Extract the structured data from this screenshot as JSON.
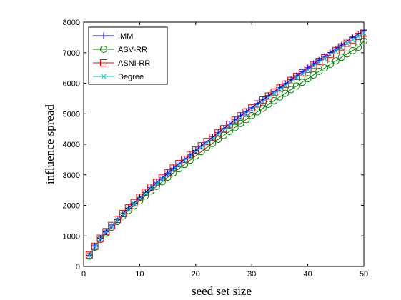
{
  "chart_data": {
    "type": "line",
    "title": "",
    "xlabel": "seed set size",
    "ylabel": "influence spread",
    "xlim": [
      0,
      50
    ],
    "ylim": [
      0,
      8000
    ],
    "xticks": [
      0,
      10,
      20,
      30,
      40,
      50
    ],
    "yticks": [
      0,
      1000,
      2000,
      3000,
      4000,
      5000,
      6000,
      7000,
      8000
    ],
    "grid": false,
    "legend_position": "top-left",
    "x": [
      1,
      2,
      3,
      4,
      5,
      6,
      7,
      8,
      9,
      10,
      11,
      12,
      13,
      14,
      15,
      16,
      17,
      18,
      19,
      20,
      21,
      22,
      23,
      24,
      25,
      26,
      27,
      28,
      29,
      30,
      31,
      32,
      33,
      34,
      35,
      36,
      37,
      38,
      39,
      40,
      41,
      42,
      43,
      44,
      45,
      46,
      47,
      48,
      49,
      50
    ],
    "series": [
      {
        "name": "IMM",
        "color": "#0000ff",
        "marker": "plus",
        "values": [
          360,
          660,
          920,
          1130,
          1330,
          1530,
          1720,
          1910,
          2080,
          2250,
          2420,
          2580,
          2740,
          2900,
          3050,
          3210,
          3360,
          3510,
          3650,
          3800,
          3950,
          4090,
          4240,
          4380,
          4520,
          4660,
          4800,
          4940,
          5070,
          5200,
          5340,
          5470,
          5600,
          5730,
          5860,
          5990,
          6120,
          6250,
          6380,
          6510,
          6640,
          6760,
          6880,
          7010,
          7130,
          7250,
          7380,
          7500,
          7610,
          7720
        ]
      },
      {
        "name": "ASV-RR",
        "color": "#008000",
        "marker": "circle",
        "values": [
          340,
          630,
          880,
          1090,
          1280,
          1470,
          1650,
          1830,
          1990,
          2150,
          2310,
          2470,
          2620,
          2770,
          2920,
          3060,
          3200,
          3340,
          3480,
          3620,
          3760,
          3900,
          4030,
          4160,
          4290,
          4420,
          4550,
          4680,
          4810,
          4940,
          5060,
          5180,
          5310,
          5430,
          5550,
          5670,
          5790,
          5910,
          6030,
          6150,
          6270,
          6390,
          6500,
          6620,
          6730,
          6850,
          6960,
          7070,
          7180,
          7380
        ]
      },
      {
        "name": "ASNI-RR",
        "color": "#ff0000",
        "marker": "square",
        "values": [
          370,
          660,
          920,
          1140,
          1340,
          1540,
          1730,
          1920,
          2090,
          2260,
          2430,
          2590,
          2750,
          2910,
          3060,
          3220,
          3370,
          3510,
          3660,
          3810,
          3950,
          4090,
          4230,
          4370,
          4510,
          4650,
          4790,
          4930,
          5060,
          5190,
          5320,
          5450,
          5580,
          5710,
          5840,
          5970,
          6090,
          6220,
          6340,
          6460,
          6590,
          6710,
          6830,
          6950,
          7070,
          7190,
          7310,
          7420,
          7530,
          7640
        ]
      },
      {
        "name": "Degree",
        "color": "#00bfbf",
        "marker": "x",
        "values": [
          360,
          650,
          910,
          1120,
          1320,
          1520,
          1700,
          1880,
          2050,
          2220,
          2390,
          2550,
          2710,
          2860,
          3020,
          3170,
          3320,
          3470,
          3610,
          3760,
          3900,
          4040,
          4180,
          4320,
          4460,
          4600,
          4740,
          4870,
          5010,
          5140,
          5270,
          5400,
          5530,
          5660,
          5790,
          5920,
          6050,
          6180,
          6300,
          6430,
          6560,
          6680,
          6800,
          6930,
          7050,
          7170,
          7300,
          7420,
          7530,
          7640
        ]
      }
    ]
  }
}
